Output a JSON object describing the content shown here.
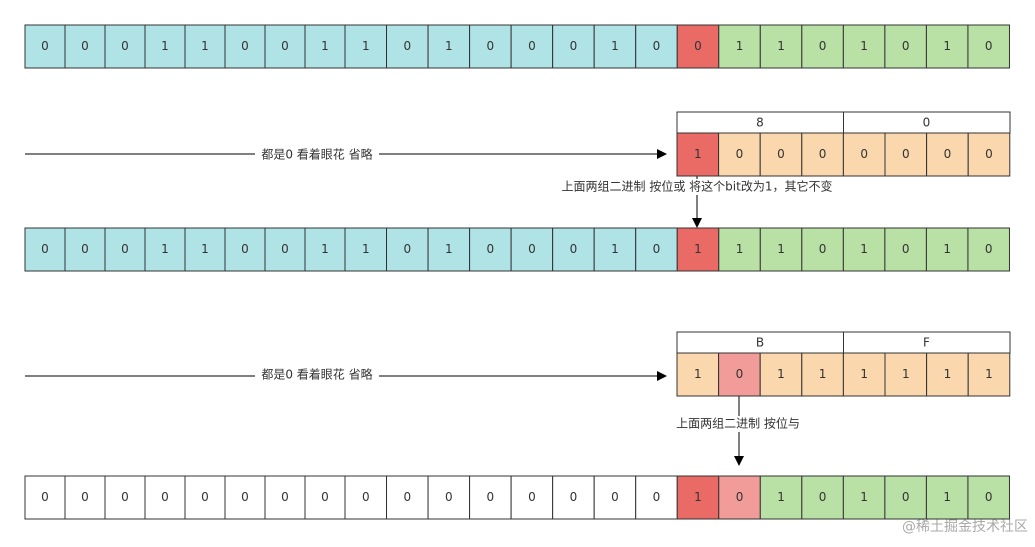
{
  "rows": [
    {
      "bits": [
        "0",
        "0",
        "0",
        "1",
        "1",
        "0",
        "0",
        "1",
        "1",
        "0",
        "1",
        "0",
        "0",
        "0",
        "1",
        "0",
        "0",
        "1",
        "1",
        "0",
        "1",
        "0",
        "1",
        "0"
      ],
      "colors": [
        "#b0e3e6",
        "#b0e3e6",
        "#b0e3e6",
        "#b0e3e6",
        "#b0e3e6",
        "#b0e3e6",
        "#b0e3e6",
        "#b0e3e6",
        "#b0e3e6",
        "#b0e3e6",
        "#b0e3e6",
        "#b0e3e6",
        "#b0e3e6",
        "#b0e3e6",
        "#b0e3e6",
        "#b0e3e6",
        "#ea6b66",
        "#b9e0a5",
        "#b9e0a5",
        "#b9e0a5",
        "#b9e0a5",
        "#b9e0a5",
        "#b9e0a5",
        "#b9e0a5"
      ]
    },
    {
      "headers": [
        "8",
        "0"
      ],
      "bits": [
        "1",
        "0",
        "0",
        "0",
        "0",
        "0",
        "0",
        "0"
      ],
      "colors": [
        "#ea6b66",
        "#fad7ac",
        "#fad7ac",
        "#fad7ac",
        "#fad7ac",
        "#fad7ac",
        "#fad7ac",
        "#fad7ac"
      ],
      "note": "都是0 看着眼花 省略",
      "op": "上面两组二进制 按位或 将这个bit改为1，其它不变"
    },
    {
      "bits": [
        "0",
        "0",
        "0",
        "1",
        "1",
        "0",
        "0",
        "1",
        "1",
        "0",
        "1",
        "0",
        "0",
        "0",
        "1",
        "0",
        "1",
        "1",
        "1",
        "0",
        "1",
        "0",
        "1",
        "0"
      ],
      "colors": [
        "#b0e3e6",
        "#b0e3e6",
        "#b0e3e6",
        "#b0e3e6",
        "#b0e3e6",
        "#b0e3e6",
        "#b0e3e6",
        "#b0e3e6",
        "#b0e3e6",
        "#b0e3e6",
        "#b0e3e6",
        "#b0e3e6",
        "#b0e3e6",
        "#b0e3e6",
        "#b0e3e6",
        "#b0e3e6",
        "#ea6b66",
        "#b9e0a5",
        "#b9e0a5",
        "#b9e0a5",
        "#b9e0a5",
        "#b9e0a5",
        "#b9e0a5",
        "#b9e0a5"
      ]
    },
    {
      "headers": [
        "B",
        "F"
      ],
      "bits": [
        "1",
        "0",
        "1",
        "1",
        "1",
        "1",
        "1",
        "1"
      ],
      "colors": [
        "#fad7ac",
        "#f19c99",
        "#fad7ac",
        "#fad7ac",
        "#fad7ac",
        "#fad7ac",
        "#fad7ac",
        "#fad7ac"
      ],
      "note": "都是0 看着眼花 省略",
      "op": "上面两组二进制 按位与"
    },
    {
      "bits": [
        "0",
        "0",
        "0",
        "0",
        "0",
        "0",
        "0",
        "0",
        "0",
        "0",
        "0",
        "0",
        "0",
        "0",
        "0",
        "0",
        "1",
        "0",
        "1",
        "0",
        "1",
        "0",
        "1",
        "0"
      ],
      "colors": [
        "#ffffff",
        "#ffffff",
        "#ffffff",
        "#ffffff",
        "#ffffff",
        "#ffffff",
        "#ffffff",
        "#ffffff",
        "#ffffff",
        "#ffffff",
        "#ffffff",
        "#ffffff",
        "#ffffff",
        "#ffffff",
        "#ffffff",
        "#ffffff",
        "#ea6b66",
        "#f19c99",
        "#b9e0a5",
        "#b9e0a5",
        "#b9e0a5",
        "#b9e0a5",
        "#b9e0a5",
        "#b9e0a5"
      ]
    }
  ],
  "watermark": "@稀土掘金技术社区"
}
